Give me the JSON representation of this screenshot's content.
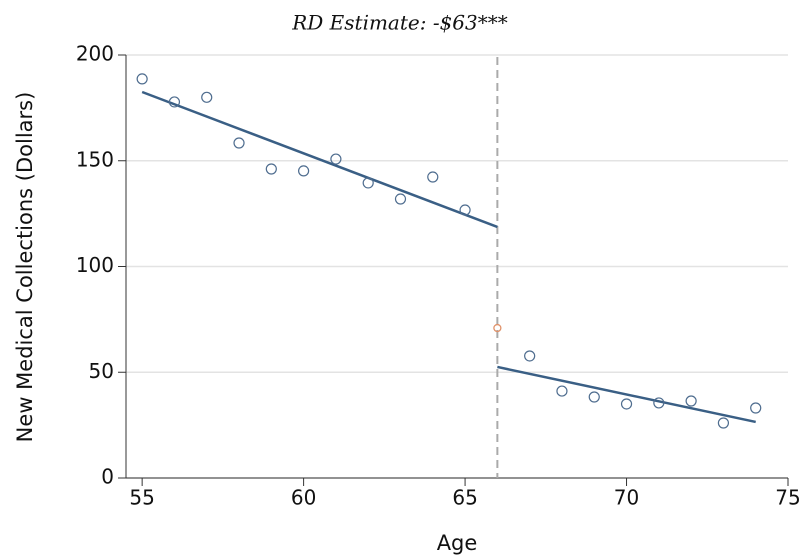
{
  "chart_data": {
    "type": "scatter",
    "title": "RD Estimate: -$63***",
    "x_label": "Age",
    "y_label": "New Medical Collections (Dollars)",
    "xlim": [
      54.5,
      75
    ],
    "ylim": [
      0,
      200
    ],
    "xticks": [
      55,
      60,
      65,
      70,
      75
    ],
    "yticks": [
      0,
      50,
      100,
      150,
      200
    ],
    "grid": "y",
    "cutoff": 66,
    "cutoff_color": "#aaaaaa",
    "series": [
      {
        "color": "#4f6d8f",
        "x": [
          55,
          56,
          57,
          58,
          59,
          60,
          61,
          62,
          63,
          64,
          65
        ],
        "values": [
          188.7,
          177.8,
          180,
          158.4,
          146.1,
          145.2,
          150.8,
          139.5,
          131.9,
          142.3,
          126.7
        ]
      },
      {
        "color": "#4f6d8f",
        "x": [
          67,
          68,
          69,
          70,
          71,
          72,
          73,
          74
        ],
        "values": [
          57.7,
          41.1,
          38.3,
          35,
          35.5,
          36.4,
          26,
          33.1
        ]
      },
      {
        "color": "#e0926a",
        "x": [
          66
        ],
        "values": [
          70.9
        ]
      }
    ],
    "fit_lines": [
      {
        "color": "#3a5f85",
        "x": [
          55,
          66
        ],
        "values": [
          182.5,
          118.7
        ]
      },
      {
        "color": "#3a5f85",
        "x": [
          66,
          74
        ],
        "values": [
          52.5,
          26.5
        ]
      }
    ]
  }
}
